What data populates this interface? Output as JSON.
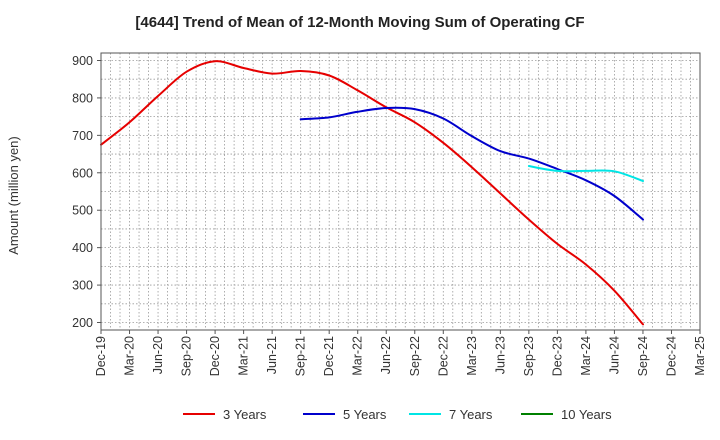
{
  "chart_data": {
    "type": "line",
    "title": "[4644]  Trend of Mean of 12-Month Moving Sum of Operating CF",
    "ylabel": "Amount (million yen)",
    "xlabel": "",
    "ylim": [
      180,
      920
    ],
    "yticks": [
      200,
      300,
      400,
      500,
      600,
      700,
      800,
      900
    ],
    "categories": [
      "Dec-19",
      "Mar-20",
      "Jun-20",
      "Sep-20",
      "Dec-20",
      "Mar-21",
      "Jun-21",
      "Sep-21",
      "Dec-21",
      "Mar-22",
      "Jun-22",
      "Sep-22",
      "Dec-22",
      "Mar-23",
      "Jun-23",
      "Sep-23",
      "Dec-23",
      "Mar-24",
      "Jun-24",
      "Sep-24",
      "Dec-24",
      "Mar-25"
    ],
    "series": [
      {
        "name": "3 Years",
        "color": "#e60000",
        "values": [
          675,
          735,
          805,
          870,
          898,
          880,
          865,
          872,
          860,
          820,
          775,
          735,
          680,
          615,
          545,
          475,
          410,
          355,
          285,
          195,
          null,
          null
        ]
      },
      {
        "name": "5 Years",
        "color": "#0000cc",
        "values": [
          null,
          null,
          null,
          null,
          null,
          null,
          null,
          743,
          748,
          763,
          773,
          770,
          745,
          698,
          658,
          638,
          610,
          580,
          538,
          475,
          null,
          null
        ]
      },
      {
        "name": "7 Years",
        "color": "#00e5e5",
        "values": [
          null,
          null,
          null,
          null,
          null,
          null,
          null,
          null,
          null,
          null,
          null,
          null,
          null,
          null,
          null,
          618,
          605,
          605,
          604,
          578,
          null,
          null
        ]
      },
      {
        "name": "10 Years",
        "color": "#008000",
        "values": [
          null,
          null,
          null,
          null,
          null,
          null,
          null,
          null,
          null,
          null,
          null,
          null,
          null,
          null,
          null,
          null,
          null,
          null,
          null,
          null,
          null,
          null
        ]
      }
    ]
  }
}
